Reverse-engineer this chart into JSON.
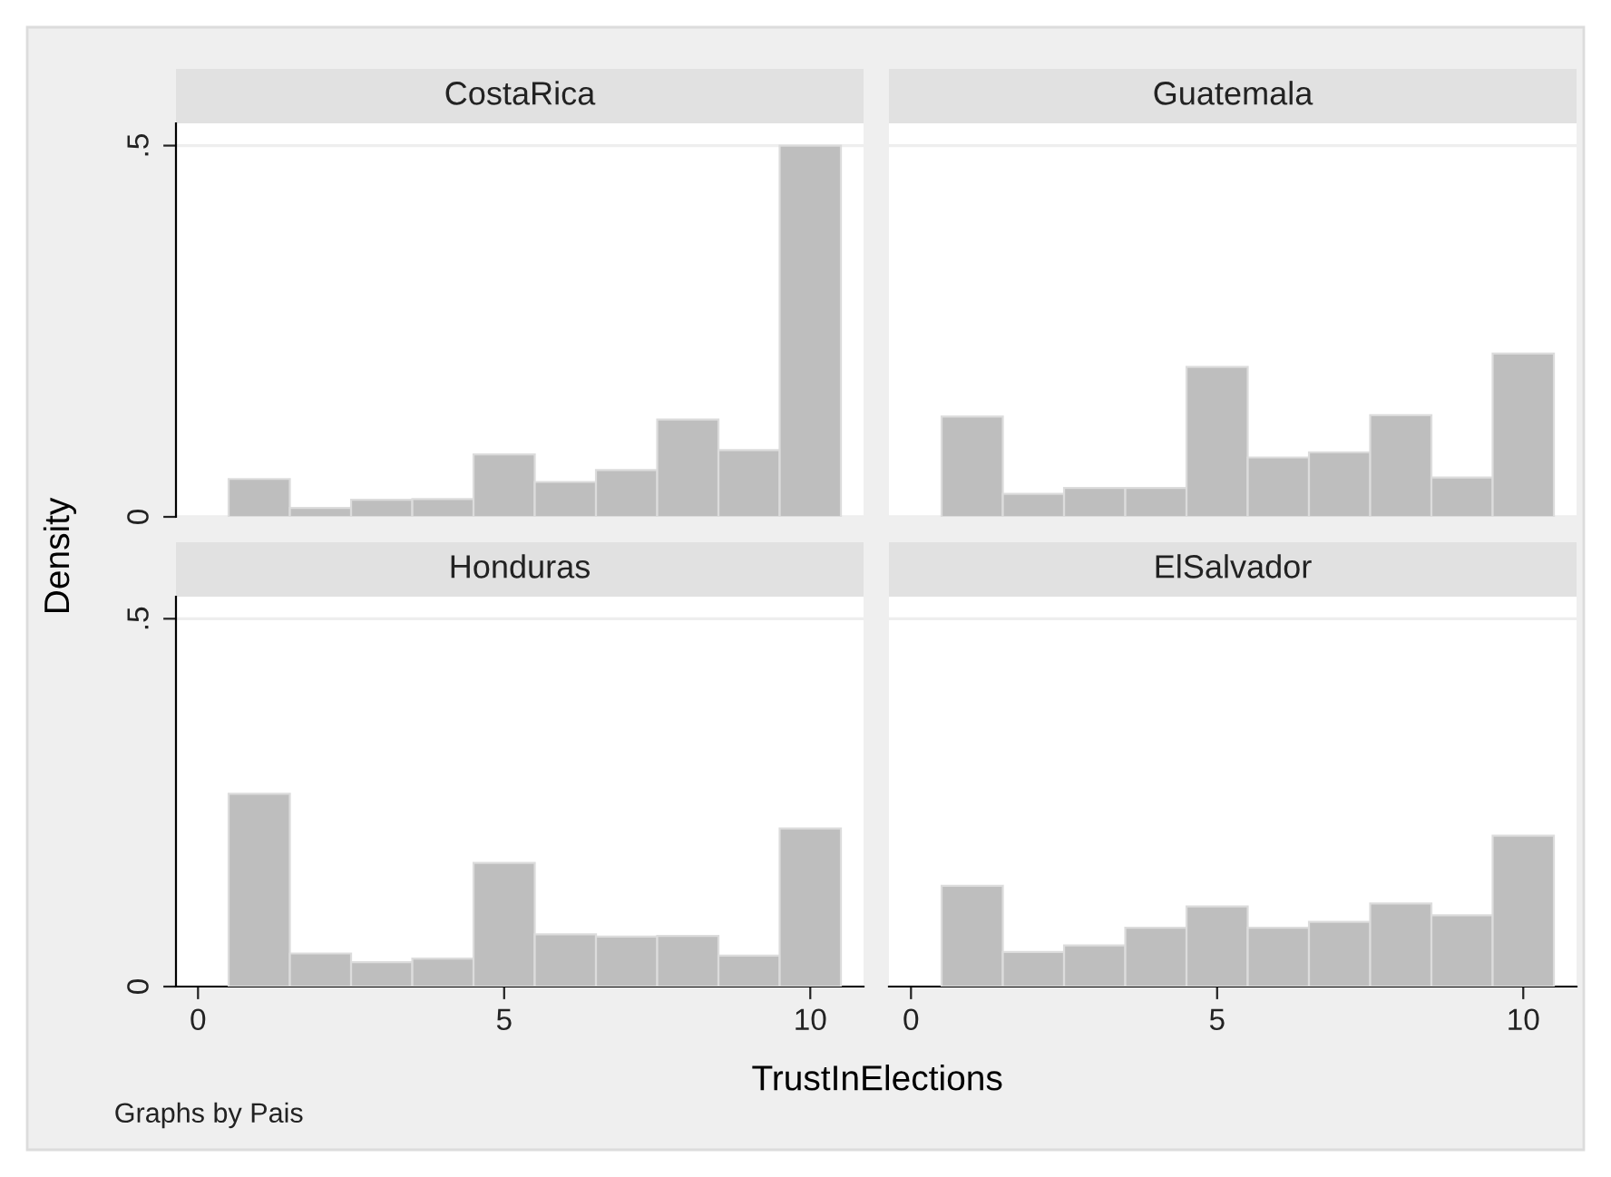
{
  "chart_data": [
    {
      "type": "histogram",
      "title": "CostaRica",
      "ylabel": "Density",
      "bins": [
        0.5,
        1.5,
        2.5,
        3.5,
        4.5,
        5.5,
        6.5,
        7.5,
        8.5,
        9.5,
        10.5
      ],
      "values": [
        0.051,
        0.012,
        0.023,
        0.024,
        0.084,
        0.047,
        0.063,
        0.131,
        0.09,
        0.5
      ],
      "color": "#bebebe",
      "xlim": [
        -0.36,
        10.87
      ],
      "ylim": [
        0,
        0.53
      ],
      "xticks": [
        0,
        5,
        10
      ],
      "yticks": [
        0,
        {
          "value": 0.5,
          "label": ".5"
        }
      ],
      "grid": "y",
      "tick_labels": "y"
    },
    {
      "type": "histogram",
      "title": "Guatemala",
      "bins": [
        0.5,
        1.5,
        2.5,
        3.5,
        4.5,
        5.5,
        6.5,
        7.5,
        8.5,
        9.5,
        10.5
      ],
      "values": [
        0.135,
        0.031,
        0.039,
        0.039,
        0.202,
        0.08,
        0.087,
        0.137,
        0.053,
        0.22
      ],
      "color": "#bebebe",
      "xlim": [
        -0.36,
        10.87
      ],
      "ylim": [
        0,
        0.53
      ],
      "xticks": [
        0,
        5,
        10
      ],
      "yticks": [
        0,
        0.5
      ],
      "grid": "y",
      "tick_labels": false
    },
    {
      "type": "histogram",
      "title": "Honduras",
      "xlabel": "TrustInElections",
      "annotations": [
        "Graphs by Pais"
      ],
      "bins": [
        0.5,
        1.5,
        2.5,
        3.5,
        4.5,
        5.5,
        6.5,
        7.5,
        8.5,
        9.5,
        10.5
      ],
      "values": [
        0.262,
        0.045,
        0.033,
        0.038,
        0.168,
        0.071,
        0.068,
        0.069,
        0.042,
        0.215
      ],
      "color": "#bebebe",
      "xlim": [
        -0.36,
        10.87
      ],
      "ylim": [
        0,
        0.53
      ],
      "xticks": [
        0,
        5,
        10
      ],
      "yticks": [
        0,
        {
          "value": 0.5,
          "label": ".5"
        }
      ],
      "grid": "y"
    },
    {
      "type": "histogram",
      "title": "ElSalvador",
      "bins": [
        0.5,
        1.5,
        2.5,
        3.5,
        4.5,
        5.5,
        6.5,
        7.5,
        8.5,
        9.5,
        10.5
      ],
      "values": [
        0.137,
        0.047,
        0.056,
        0.08,
        0.109,
        0.08,
        0.088,
        0.113,
        0.097,
        0.205
      ],
      "color": "#bebebe",
      "xlim": [
        -0.36,
        10.87
      ],
      "ylim": [
        0,
        0.53
      ],
      "xticks": [
        0,
        5,
        10
      ],
      "yticks": [
        0,
        0.5
      ],
      "grid": "y",
      "tick_labels": "x"
    }
  ]
}
